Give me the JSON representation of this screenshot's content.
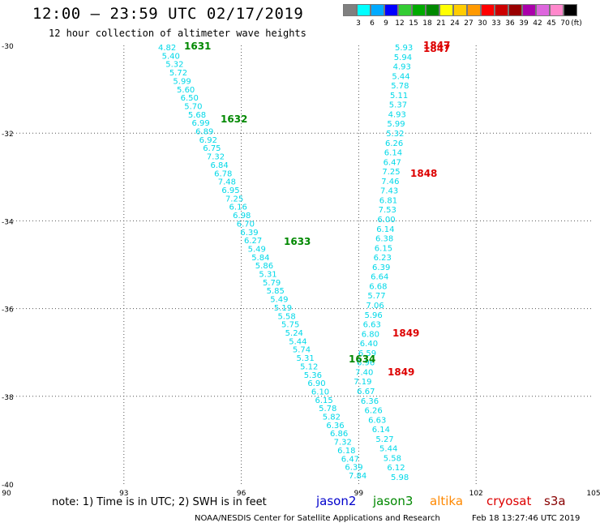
{
  "header": {
    "title": "12:00 — 23:59 UTC 02/17/2019",
    "subtitle": "12 hour collection of altimeter wave heights"
  },
  "colorbar": {
    "unit_label": "(ft)",
    "swatches": [
      {
        "color": "#808080",
        "label": "3"
      },
      {
        "color": "#00ffff",
        "label": "6"
      },
      {
        "color": "#00aaff",
        "label": "9"
      },
      {
        "color": "#0000ff",
        "label": "12"
      },
      {
        "color": "#33cc33",
        "label": "15"
      },
      {
        "color": "#00aa00",
        "label": "18"
      },
      {
        "color": "#008800",
        "label": "21"
      },
      {
        "color": "#ffff00",
        "label": "24"
      },
      {
        "color": "#ffcc00",
        "label": "27"
      },
      {
        "color": "#ff9900",
        "label": "30"
      },
      {
        "color": "#ff0000",
        "label": "33"
      },
      {
        "color": "#cc0000",
        "label": "36"
      },
      {
        "color": "#990000",
        "label": "39"
      },
      {
        "color": "#aa00aa",
        "label": "42"
      },
      {
        "color": "#dd66dd",
        "label": "45"
      },
      {
        "color": "#ff88cc",
        "label": "70"
      },
      {
        "color": "#000000",
        "label": ""
      }
    ]
  },
  "map": {
    "lon_range": [
      90,
      105
    ],
    "lat_range": [
      -40,
      -30
    ],
    "lon_ticks": [
      "90",
      "93",
      "96",
      "99",
      "102",
      "105"
    ],
    "lat_ticks": [
      "-30",
      "-32",
      "-34",
      "-36",
      "-38",
      "-40"
    ],
    "gridlines": "dotted",
    "track_a_color": "#00d8e8",
    "track_a": [
      "4.82",
      "5.40",
      "5.32",
      "5.72",
      "5.99",
      "5.60",
      "6.50",
      "5.70",
      "5.68",
      "6.99",
      "6.89",
      "6.92",
      "6.75",
      "7.32",
      "6.84",
      "6.78",
      "7.48",
      "6.95",
      "7.25",
      "6.16",
      "6.98",
      "6.70",
      "6.39",
      "6.27",
      "5.49",
      "5.84",
      "5.86",
      "5.31",
      "5.79",
      "5.85",
      "5.49",
      "5.19",
      "5.58",
      "5.75",
      "5.24",
      "5.44",
      "5.74",
      "5.31",
      "5.12",
      "5.36",
      "6.90",
      "6.10",
      "6.15",
      "5.78",
      "5.82",
      "6.36",
      "6.86",
      "7.32",
      "6.18",
      "6.47",
      "6.39",
      "7.84"
    ],
    "track_b": [
      "5.93",
      "5.94",
      "4.93",
      "5.44",
      "5.78",
      "5.11",
      "5.37",
      "4.93",
      "5.99",
      "5.32",
      "6.26",
      "6.14",
      "6.47",
      "7.25",
      "7.46",
      "7.43",
      "6.81",
      "7.53",
      "6.00",
      "6.14",
      "6.38",
      "6.15",
      "6.23",
      "6.39",
      "6.64",
      "6.68",
      "5.77",
      "7.06",
      "5.96",
      "6.63",
      "6.80",
      "6.40",
      "6.59",
      "6.96",
      "7.40",
      "7.19",
      "6.67",
      "6.36",
      "6.26",
      "6.63",
      "6.14",
      "5.27",
      "5.44",
      "5.58",
      "6.12",
      "5.98"
    ],
    "time_labels": [
      {
        "text": "1631",
        "sat": "jason3"
      },
      {
        "text": "1632",
        "sat": "jason3"
      },
      {
        "text": "1633",
        "sat": "jason3"
      },
      {
        "text": "1634",
        "sat": "jason3"
      },
      {
        "text": "1847",
        "sat": "cryosat"
      },
      {
        "text": "1847",
        "sat": "cryosat"
      },
      {
        "text": "1848",
        "sat": "cryosat"
      },
      {
        "text": "1849",
        "sat": "cryosat"
      },
      {
        "text": "1849",
        "sat": "cryosat"
      }
    ]
  },
  "footer": {
    "note": "note:  1) Time is in UTC;  2) SWH is in feet",
    "satellites": [
      {
        "name": "jason2",
        "color": "#0000cc"
      },
      {
        "name": "jason3",
        "color": "#008800"
      },
      {
        "name": "altika",
        "color": "#ff8800"
      },
      {
        "name": "cryosat",
        "color": "#dd0000"
      },
      {
        "name": "s3a",
        "color": "#880000"
      }
    ],
    "credit": "NOAA/NESDIS Center for Satellite Applications and Research",
    "timestamp": "Feb 18 13:27:46 UTC 2019"
  }
}
